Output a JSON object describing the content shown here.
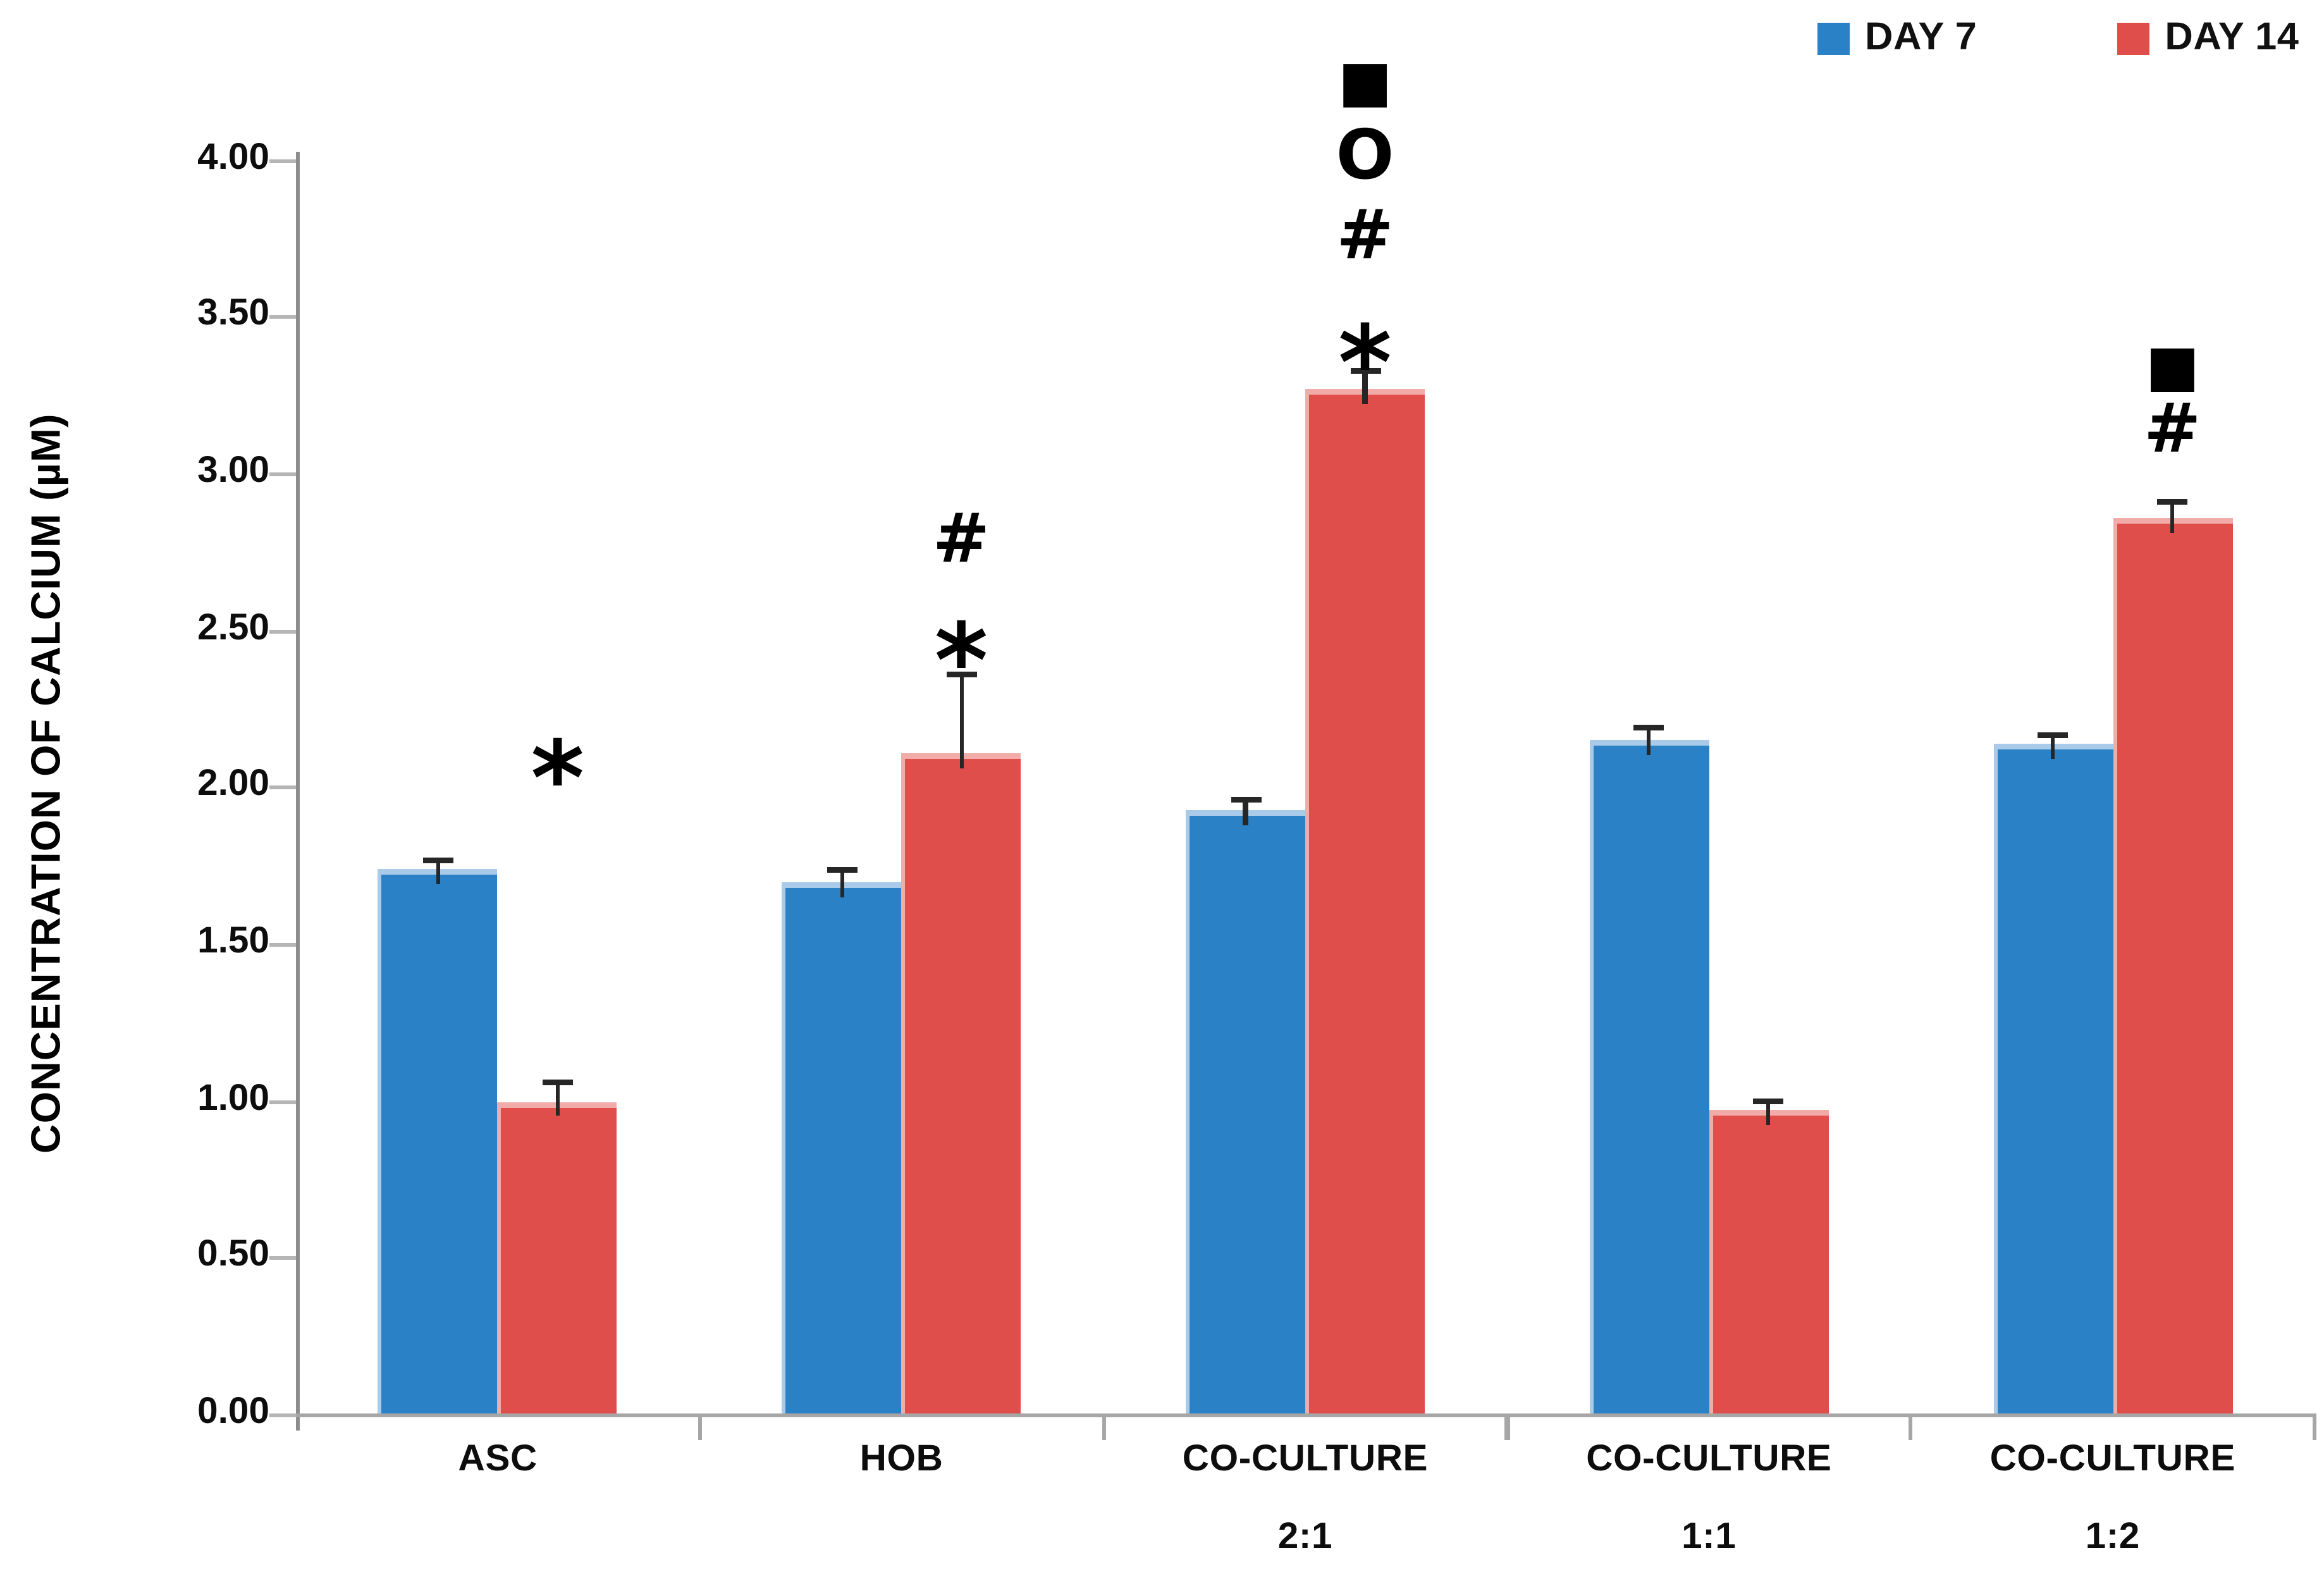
{
  "chart_data": {
    "type": "bar",
    "title": "",
    "xlabel": "",
    "ylabel": "CONCENTRATION OF CALCIUM (µM)",
    "ylim": [
      0,
      4.0
    ],
    "grid": false,
    "legend_position": "top-right",
    "yticks": [
      {
        "label": "0.00",
        "value": 0.0
      },
      {
        "label": "0.50",
        "value": 0.5
      },
      {
        "label": "1.00",
        "value": 1.0
      },
      {
        "label": "1.50",
        "value": 1.5
      },
      {
        "label": "2.00",
        "value": 2.0
      },
      {
        "label": "2.50",
        "value": 2.5
      },
      {
        "label": "3.00",
        "value": 3.0
      },
      {
        "label": "3.50",
        "value": 3.5
      },
      {
        "label": "4.00",
        "value": 4.0
      }
    ],
    "categories": [
      {
        "label": "ASC",
        "sublabel": "",
        "annotations": [
          {
            "symbol": "*",
            "name": "asterisk",
            "y": 2.11
          }
        ]
      },
      {
        "label": "HOB",
        "sublabel": "",
        "annotations": [
          {
            "symbol": "*",
            "name": "asterisk",
            "y": 2.48
          },
          {
            "symbol": "#",
            "name": "hash",
            "y": 2.79
          }
        ]
      },
      {
        "label": "CO-CULTURE",
        "sublabel": "2:1",
        "annotations": [
          {
            "symbol": "*",
            "name": "asterisk",
            "y": 3.43
          },
          {
            "symbol": "#",
            "name": "hash",
            "y": 3.76
          },
          {
            "symbol": "O",
            "name": "circle",
            "y": 4.01
          },
          {
            "symbol": "■",
            "name": "square",
            "y": 4.25
          }
        ]
      },
      {
        "label": "CO-CULTURE",
        "sublabel": "1:1",
        "annotations": []
      },
      {
        "label": "CO-CULTURE",
        "sublabel": "1:2",
        "annotations": [
          {
            "symbol": "#",
            "name": "hash",
            "y": 3.14
          },
          {
            "symbol": "■",
            "name": "square",
            "y": 3.34
          }
        ]
      }
    ],
    "series": [
      {
        "name": "DAY 7",
        "color": "#2B81C5",
        "edge_color": "#A9CBE9",
        "values": [
          1.74,
          1.7,
          1.93,
          2.15,
          2.14
        ],
        "errors": [
          0.03,
          0.04,
          0.03,
          0.04,
          0.03
        ]
      },
      {
        "name": "DAY 14",
        "color": "#E04E4B",
        "edge_color": "#F1ACA9",
        "values": [
          1.0,
          2.11,
          3.27,
          0.97,
          2.86
        ],
        "errors": [
          0.06,
          0.25,
          0.06,
          0.03,
          0.05
        ]
      }
    ]
  }
}
